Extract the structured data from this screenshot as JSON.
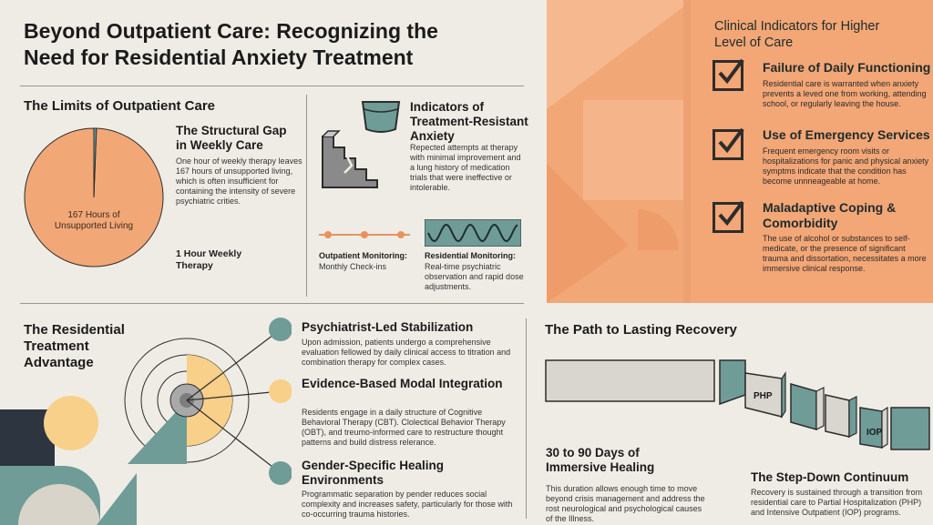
{
  "title_line1": "Beyond Outpatient Care: Recognizing the",
  "title_line2": "Need for Residential Anxiety Treatment",
  "limits": {
    "heading": "The Limits of Outpatient Care",
    "pie_label": "167 Hours of Unsupported Living",
    "pie_small_label": "1 Hour Weekly Therapy",
    "gap_title": "The Structural Gap in Weekly Care",
    "gap_body": "One hour of weekly therapy leaves 167 hours of unsupported living, which is often insufficient for containing the intensity of severe psychiatric crities."
  },
  "chart_data": {
    "type": "pie",
    "categories": [
      "167 Hours of Unsupported Living",
      "1 Hour Weekly Therapy"
    ],
    "values": [
      167,
      1
    ],
    "colors": [
      "#f2a777",
      "#6f9c97"
    ]
  },
  "resistant": {
    "title": "Indicators of Treatment-Resistant Anxiety",
    "body": "Repected attempts at therapy with minimal improvement and a lung history of medication trials that were ineffective or intolerable."
  },
  "monitoring": {
    "outpatient_title": "Outpatient Monitoring:",
    "outpatient_body": "Monthly Check-ins",
    "residential_title": "Residential Monitoring:",
    "residential_body": "Real-time psychiatric observation and rapid dose adjustments."
  },
  "clinical": {
    "heading": "Clinical Indicators for Higher Level of Care",
    "items": [
      {
        "title": "Failure of Daily Functioning",
        "body": "Residential care is warranted when anxiety prevents a leved one from working, attending school, or regularly leaving the house."
      },
      {
        "title": "Use of Emergency Services",
        "body": "Frequent emergency room visits or hospitalizations for panic and physical anxiety symptms indicate that the condition has become unnneageable at home."
      },
      {
        "title": "Maladaptive Coping & Comorbidity",
        "body": "The use of alcohol or substances to self-medicate, or the presence of significant trauma and dissortation, necessitates a more immersive clinical response."
      }
    ]
  },
  "residential": {
    "heading": "The Residential Treatment Advantage",
    "items": [
      {
        "title": "Psychiatrist-Led Stabilization",
        "body": "Upon admission, patients undergo a comprehensive evaluation fellowed by daily clinical access to titration and combination therapy for complex cases."
      },
      {
        "title": "Evidence-Based Modal Integration",
        "body": "Residents engage in a daily structure of Cognitive Behavioral Therapy (CBT). Clolectical Behavior Therapy (OBT), and treumo-informed care to restructure thought patterns and build distress relerance."
      },
      {
        "title": "Gender-Specific Healing Environments",
        "body": "Programmatic separation by pender reduces social complexity and increases safety, particularly for those with co-occurring trauma histories."
      }
    ]
  },
  "recovery": {
    "heading": "The Path to Lasting Recovery",
    "days_title": "30 to 90 Days of Immersive Healing",
    "days_body": "This duration allows enough time to move beyond crisis management and address the rost neurological and psychological causes of the Illness.",
    "php_label": "PHP",
    "iop_label": "IOP",
    "step_title": "The Step-Down Continuum",
    "step_body": "Recovery is sustained through a transition from residential care to Partial Hospitalization (PHP) and Intensive Outpatient (IOP) programs."
  }
}
